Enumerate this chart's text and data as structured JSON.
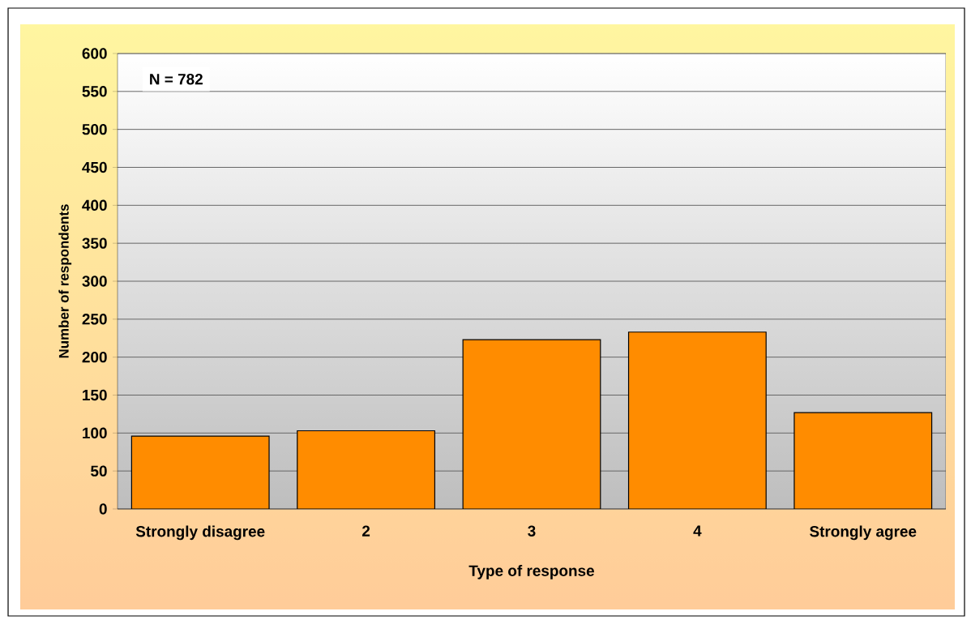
{
  "chart_data": {
    "type": "bar",
    "xlabel": "Type of response",
    "ylabel": "Number of respondents",
    "annotations": [
      "N = 782"
    ],
    "categories": [
      "Strongly disagree",
      "2",
      "3",
      "4",
      "Strongly agree"
    ],
    "values": [
      96,
      103,
      223,
      233,
      127
    ],
    "color": "#ff8c00",
    "ylim": [
      0,
      600
    ],
    "yticks": [
      0,
      50,
      100,
      150,
      200,
      250,
      300,
      350,
      400,
      450,
      500,
      550,
      600
    ],
    "grid": "y"
  }
}
